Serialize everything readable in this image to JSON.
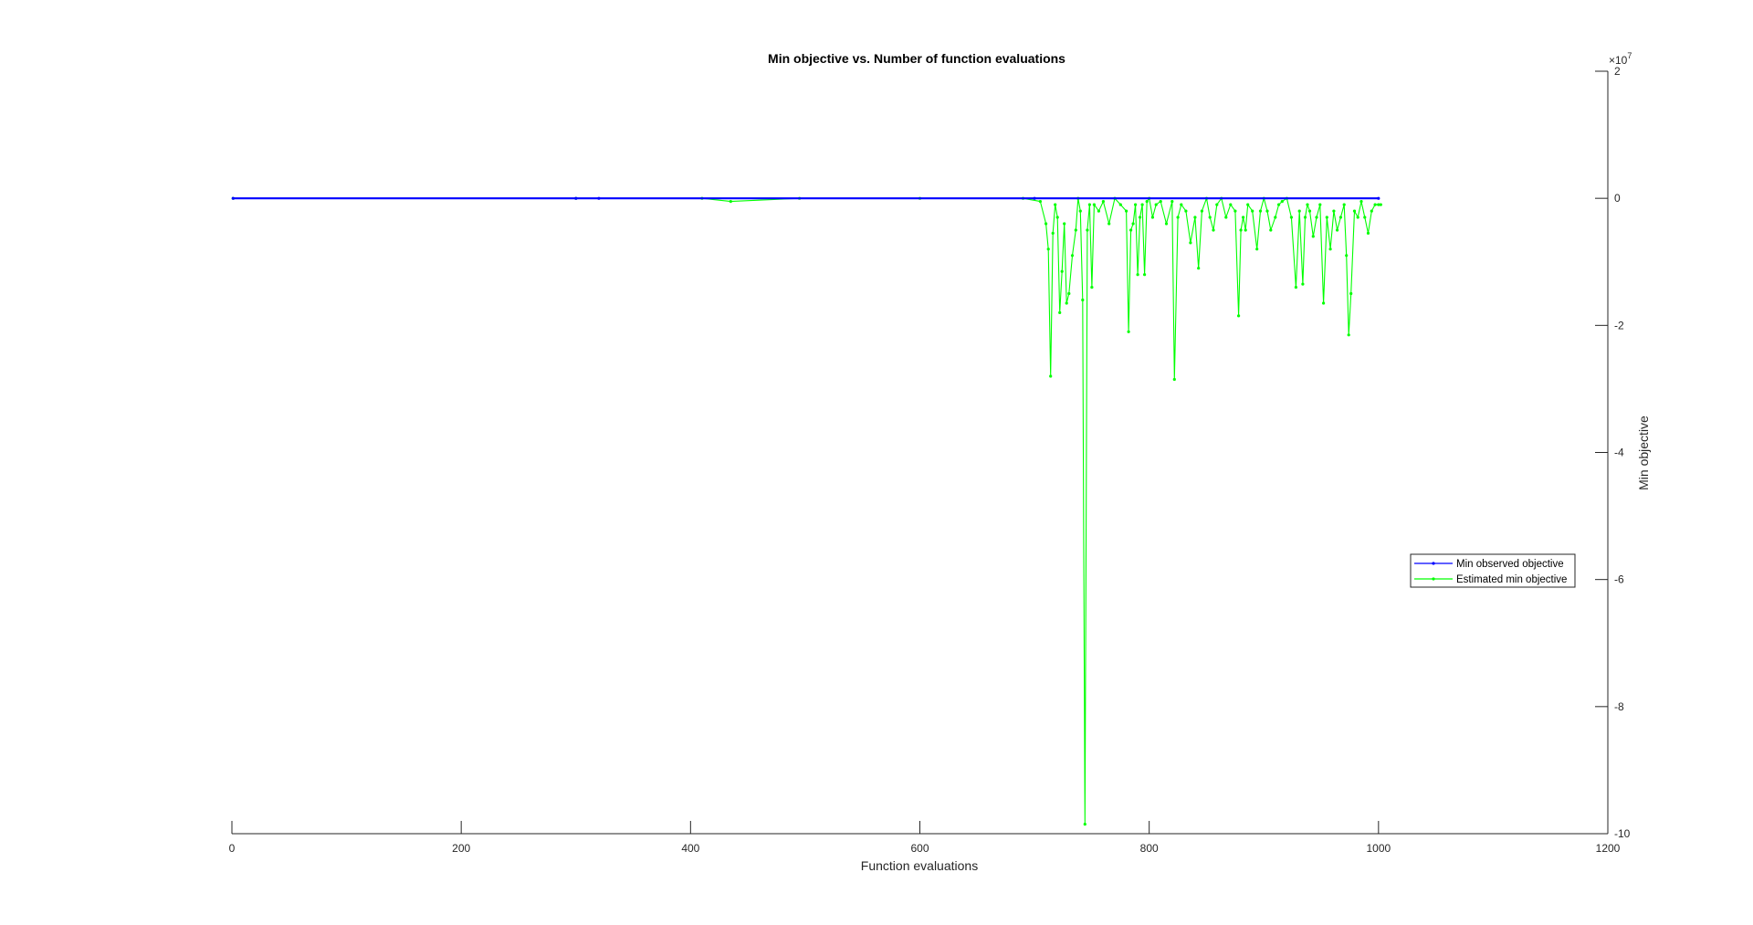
{
  "chart_data": {
    "type": "line",
    "title": "Min objective vs. Number of function evaluations",
    "xlabel": "Function evaluations",
    "ylabel": "Min objective",
    "y_exponent_label": "×10",
    "y_exponent_power": "7",
    "xlim": [
      0,
      1200
    ],
    "ylim": [
      -10,
      2
    ],
    "y_units": "×10^7",
    "x_axis_location": "bottom",
    "y_axis_location": "right",
    "grid": false,
    "legend_location": "east",
    "x_ticks": [
      0,
      200,
      400,
      600,
      800,
      1000,
      1200
    ],
    "y_ticks": [
      -10,
      -8,
      -6,
      -4,
      -2,
      0,
      2
    ],
    "x_tick_labels": [
      "0",
      "200",
      "400",
      "600",
      "800",
      "1000",
      "1200"
    ],
    "y_tick_labels": [
      "-10",
      "-8",
      "-6",
      "-4",
      "-2",
      "0",
      "2"
    ],
    "series": [
      {
        "name": "Min observed objective",
        "color": "#0000ff",
        "x": [
          1,
          300,
          320,
          700,
          1000
        ],
        "y": [
          0,
          0,
          0,
          0,
          0
        ]
      },
      {
        "name": "Estimated min objective",
        "color": "#00ff00",
        "x": [
          1,
          300,
          410,
          435,
          495,
          600,
          690,
          705,
          710,
          712,
          714,
          716,
          718,
          720,
          722,
          724,
          726,
          728,
          730,
          733,
          736,
          738,
          740,
          742,
          744,
          746,
          748,
          750,
          752,
          756,
          760,
          765,
          770,
          775,
          780,
          782,
          784,
          786,
          788,
          790,
          792,
          794,
          796,
          798,
          800,
          803,
          806,
          810,
          815,
          820,
          822,
          825,
          828,
          832,
          836,
          840,
          843,
          846,
          850,
          853,
          856,
          859,
          863,
          867,
          871,
          875,
          878,
          880,
          882,
          884,
          886,
          890,
          894,
          897,
          900,
          903,
          906,
          910,
          913,
          916,
          920,
          924,
          928,
          931,
          934,
          936,
          938,
          940,
          943,
          946,
          949,
          952,
          955,
          958,
          961,
          964,
          967,
          970,
          972,
          974,
          976,
          979,
          982,
          985,
          988,
          991,
          994,
          997,
          1000,
          1002
        ],
        "y": [
          0,
          0,
          0,
          -0.05,
          0,
          0,
          0,
          -0.05,
          -0.4,
          -0.8,
          -2.8,
          -0.55,
          -0.1,
          -0.3,
          -1.8,
          -1.15,
          -0.4,
          -1.65,
          -1.5,
          -0.9,
          -0.5,
          0,
          -0.2,
          -1.6,
          -9.85,
          -0.5,
          -0.1,
          -1.4,
          -0.1,
          -0.2,
          -0.05,
          -0.4,
          0,
          -0.1,
          -0.2,
          -2.1,
          -0.5,
          -0.4,
          -0.1,
          -1.2,
          -0.3,
          -0.1,
          -1.2,
          -0.05,
          0,
          -0.3,
          -0.1,
          -0.05,
          -0.4,
          -0.05,
          -2.85,
          -0.3,
          -0.1,
          -0.2,
          -0.7,
          -0.3,
          -1.1,
          -0.2,
          0,
          -0.3,
          -0.5,
          -0.1,
          0,
          -0.3,
          -0.1,
          -0.2,
          -1.85,
          -0.5,
          -0.3,
          -0.5,
          -0.1,
          -0.2,
          -0.8,
          -0.2,
          0,
          -0.2,
          -0.5,
          -0.3,
          -0.1,
          -0.05,
          0,
          -0.3,
          -1.4,
          -0.2,
          -1.35,
          -0.3,
          -0.1,
          -0.2,
          -0.6,
          -0.3,
          -0.1,
          -1.65,
          -0.3,
          -0.8,
          -0.2,
          -0.5,
          -0.3,
          -0.1,
          -0.9,
          -2.15,
          -1.5,
          -0.2,
          -0.3,
          -0.05,
          -0.3,
          -0.55,
          -0.2,
          -0.1,
          -0.1,
          -0.1
        ]
      }
    ]
  }
}
